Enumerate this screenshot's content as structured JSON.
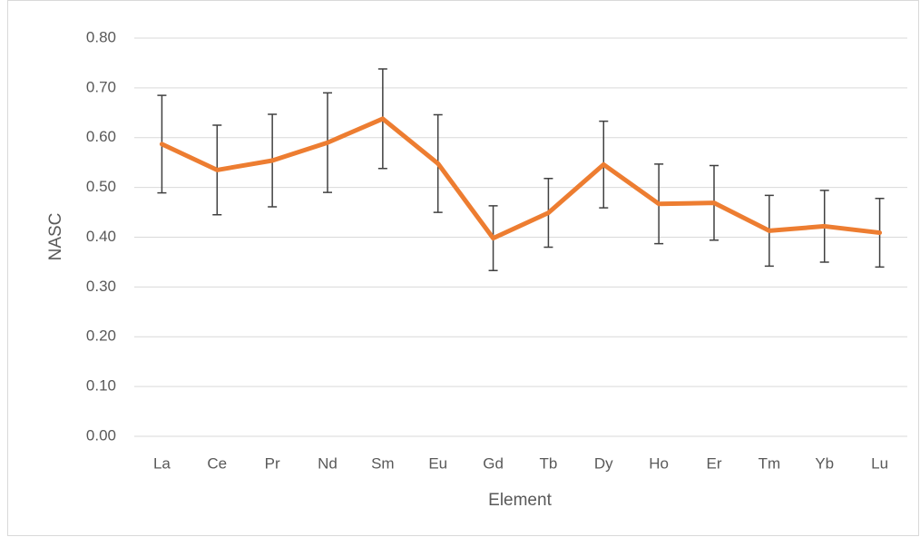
{
  "chart_data": {
    "type": "line",
    "x_label": "Element",
    "y_label": "NASC",
    "categories": [
      "La",
      "Ce",
      "Pr",
      "Nd",
      "Sm",
      "Eu",
      "Gd",
      "Tb",
      "Dy",
      "Ho",
      "Er",
      "Tm",
      "Yb",
      "Lu"
    ],
    "series": [
      {
        "color": "#ed7d31",
        "values": [
          0.587,
          0.535,
          0.554,
          0.59,
          0.638,
          0.548,
          0.398,
          0.449,
          0.546,
          0.467,
          0.469,
          0.413,
          0.422,
          0.409
        ],
        "errors": [
          0.098,
          0.09,
          0.093,
          0.1,
          0.1,
          0.098,
          0.065,
          0.069,
          0.087,
          0.08,
          0.075,
          0.071,
          0.072,
          0.069
        ]
      }
    ],
    "error_bar_color": "#404040",
    "ylim": [
      0,
      0.8
    ],
    "yticks": [
      {
        "value": 0,
        "label": "0.00"
      },
      {
        "value": 0.1,
        "label": "0.10"
      },
      {
        "value": 0.2,
        "label": "0.20"
      },
      {
        "value": 0.3,
        "label": "0.30"
      },
      {
        "value": 0.4,
        "label": "0.40"
      },
      {
        "value": 0.5,
        "label": "0.50"
      },
      {
        "value": 0.6,
        "label": "0.60"
      },
      {
        "value": 0.7,
        "label": "0.70"
      },
      {
        "value": 0.8,
        "label": "0.80"
      }
    ],
    "grid": true
  }
}
